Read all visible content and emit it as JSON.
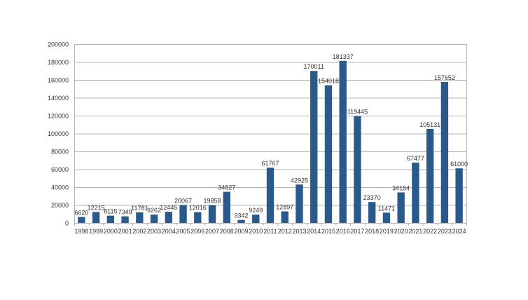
{
  "chart_data": {
    "type": "bar",
    "categories": [
      "1998",
      "1999",
      "2000",
      "2001",
      "2002",
      "2003",
      "2004",
      "2005",
      "2006",
      "2007",
      "2008",
      "2009",
      "2010",
      "2011",
      "2012",
      "2013",
      "2014",
      "2015",
      "2016",
      "2017",
      "2018",
      "2019",
      "2020",
      "2021",
      "2022",
      "2023",
      "2024"
    ],
    "series": [
      {
        "values": [
          6620,
          12215,
          8115,
          7349,
          11781,
          9262,
          12445,
          20067,
          12016,
          19858,
          34827,
          3342,
          9249,
          61767,
          12897,
          42925,
          170011,
          154018,
          181337,
          119445,
          23370,
          11471,
          34154,
          67477,
          105131,
          157652,
          61000
        ]
      }
    ],
    "ylim": [
      0,
      200000
    ],
    "yticks": [
      0,
      20000,
      40000,
      60000,
      80000,
      100000,
      120000,
      140000,
      160000,
      180000,
      200000
    ],
    "grid": true,
    "legend": "none",
    "bar_color": "#2a5a8c",
    "grid_color": "#b3b3b3"
  }
}
